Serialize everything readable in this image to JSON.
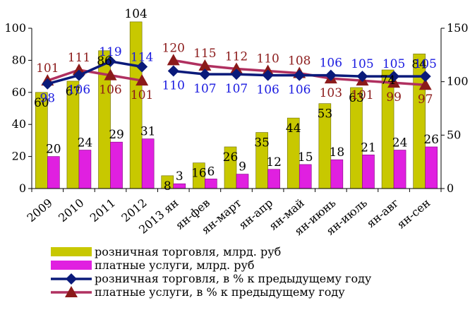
{
  "chart_data": {
    "type": "bar",
    "categories": [
      "2009",
      "2010",
      "2011",
      "2012",
      "2013 ян",
      "ян-фев",
      "ян-март",
      "ян-апр",
      "ян-май",
      "ян-июнь",
      "ян-июль",
      "ян-авг",
      "ян-сен"
    ],
    "series": [
      {
        "name": "розничная торговля, млрд. руб",
        "type": "bar",
        "axis": "left",
        "color": "#c8c800",
        "values": [
          60,
          67,
          86,
          104,
          8,
          16,
          26,
          35,
          44,
          53,
          63,
          74,
          84
        ]
      },
      {
        "name": "платные услуги, млрд. руб",
        "type": "bar",
        "axis": "left",
        "color": "#e020e0",
        "values": [
          20,
          24,
          29,
          31,
          3,
          6,
          9,
          12,
          15,
          18,
          21,
          24,
          26
        ]
      },
      {
        "name": "розничная торговля, в % к предыдущему году",
        "type": "line",
        "axis": "right",
        "color": "#0a1a7a",
        "marker": "diamond",
        "values": [
          98,
          106,
          119,
          114,
          110,
          107,
          107,
          106,
          106,
          106,
          105,
          105,
          105
        ]
      },
      {
        "name": "платные услуги, в % к предыдущему году",
        "type": "line",
        "axis": "right",
        "color": "#b03060",
        "marker": "triangle",
        "values": [
          101,
          111,
          106,
          101,
          120,
          115,
          112,
          110,
          108,
          103,
          101,
          99,
          97
        ]
      }
    ],
    "left_axis": {
      "ylim": [
        0,
        100
      ],
      "ticks": [
        0,
        20,
        40,
        60,
        80,
        100
      ]
    },
    "right_axis": {
      "ylim": [
        0,
        150
      ],
      "ticks": [
        0,
        50,
        100,
        150
      ]
    },
    "legend_position": "bottom",
    "grid": false
  }
}
